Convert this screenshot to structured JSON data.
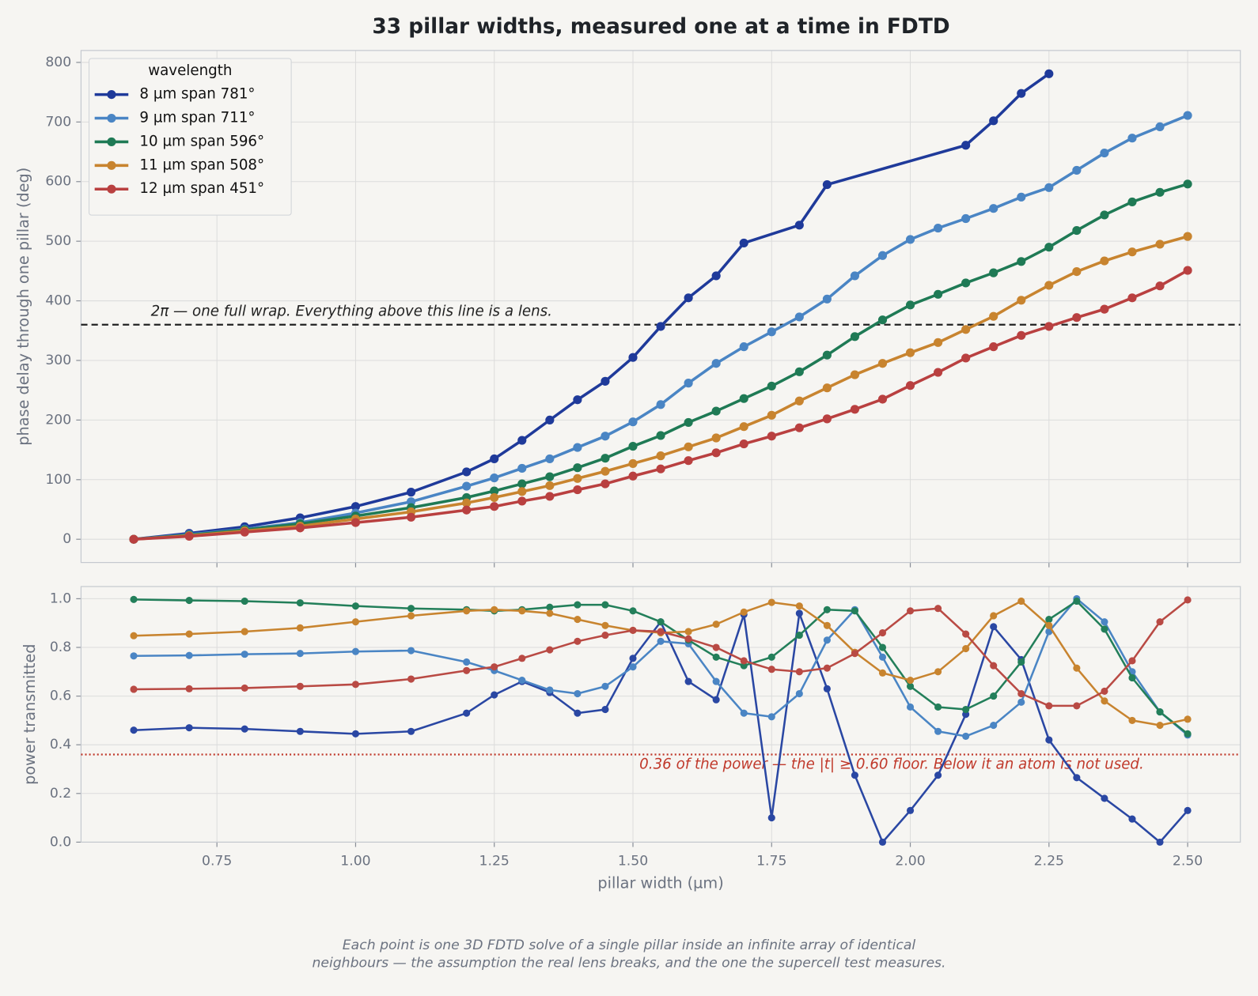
{
  "chart_data": [
    {
      "type": "line",
      "title": "33 pillar widths, measured one at a time in FDTD",
      "ylabel": "phase delay through one pillar (deg)",
      "x": [
        0.6,
        0.7,
        0.8,
        0.9,
        1.0,
        1.1,
        1.2,
        1.25,
        1.3,
        1.35,
        1.4,
        1.45,
        1.5,
        1.55,
        1.6,
        1.65,
        1.7,
        1.75,
        1.8,
        1.85,
        1.9,
        1.95,
        2.0,
        2.05,
        2.1,
        2.15,
        2.2,
        2.25,
        2.3,
        2.35,
        2.4,
        2.45,
        2.5
      ],
      "xlim": [
        0.505,
        2.595
      ],
      "ylim": [
        -39,
        820
      ],
      "xticks": [
        0.75,
        1,
        1.25,
        1.5,
        1.75,
        2,
        2.25,
        2.5
      ],
      "xtick_labels": false,
      "yticks": [
        0,
        100,
        200,
        300,
        400,
        500,
        600,
        700,
        800
      ],
      "grid": true,
      "legend": {
        "title": "wavelength",
        "loc": "upper left"
      },
      "hline": {
        "value": 360,
        "label": "2π — one full wrap. Everything above this line is a lens.",
        "color": "#222222",
        "style": "dashed"
      },
      "series": [
        {
          "name": "8 µm   span 781°",
          "color": "#1f3a9a",
          "x": [
            0.6,
            0.7,
            0.8,
            0.9,
            1.0,
            1.1,
            1.2,
            1.25,
            1.3,
            1.35,
            1.4,
            1.45,
            1.5,
            1.55,
            1.6,
            1.65,
            1.7,
            1.8,
            1.85,
            2.1,
            2.15,
            2.2,
            2.25
          ],
          "values": [
            0,
            10,
            21,
            36,
            55,
            79,
            113,
            135,
            166,
            200,
            234,
            265,
            305,
            357,
            405,
            442,
            497,
            527,
            595,
            661,
            702,
            748,
            781
          ]
        },
        {
          "name": "9 µm   span 711°",
          "color": "#4a85c4",
          "values": [
            0,
            8,
            17,
            28,
            44,
            63,
            89,
            103,
            119,
            135,
            154,
            173,
            197,
            226,
            262,
            295,
            323,
            348,
            373,
            403,
            442,
            476,
            503,
            522,
            538,
            555,
            574,
            590,
            619,
            648,
            673,
            692,
            711
          ]
        },
        {
          "name": "10 µm   span 596°",
          "color": "#1f7a55",
          "values": [
            0,
            7,
            16,
            26,
            39,
            53,
            70,
            81,
            93,
            105,
            120,
            136,
            156,
            174,
            196,
            215,
            236,
            257,
            281,
            309,
            340,
            368,
            393,
            411,
            430,
            447,
            466,
            490,
            518,
            544,
            566,
            582,
            596
          ]
        },
        {
          "name": "11 µm   span 508°",
          "color": "#c8842f",
          "values": [
            0,
            6,
            14,
            22,
            34,
            46,
            61,
            70,
            80,
            90,
            102,
            114,
            127,
            140,
            155,
            170,
            189,
            208,
            232,
            254,
            276,
            295,
            313,
            330,
            352,
            374,
            401,
            426,
            449,
            467,
            482,
            495,
            508
          ]
        },
        {
          "name": "12 µm   span 451°",
          "color": "#b94040",
          "values": [
            0,
            5,
            12,
            19,
            28,
            37,
            49,
            55,
            64,
            72,
            83,
            93,
            106,
            118,
            132,
            145,
            160,
            173,
            187,
            202,
            218,
            235,
            258,
            280,
            304,
            323,
            342,
            357,
            372,
            386,
            405,
            425,
            451
          ]
        }
      ]
    },
    {
      "type": "line",
      "xlabel": "pillar width (µm)",
      "ylabel": "power transmitted",
      "x": [
        0.6,
        0.7,
        0.8,
        0.9,
        1.0,
        1.1,
        1.2,
        1.25,
        1.3,
        1.35,
        1.4,
        1.45,
        1.5,
        1.55,
        1.6,
        1.65,
        1.7,
        1.75,
        1.8,
        1.85,
        1.9,
        1.95,
        2.0,
        2.05,
        2.1,
        2.15,
        2.2,
        2.25,
        2.3,
        2.35,
        2.4,
        2.45,
        2.5
      ],
      "xlim": [
        0.505,
        2.595
      ],
      "ylim": [
        0,
        1.05
      ],
      "xticks": [
        {
          "value": 0.75,
          "label": "0.75"
        },
        {
          "value": 1,
          "label": "1.00"
        },
        {
          "value": 1.25,
          "label": "1.25"
        },
        {
          "value": 1.5,
          "label": "1.50"
        },
        {
          "value": 1.75,
          "label": "1.75"
        },
        {
          "value": 2,
          "label": "2.00"
        },
        {
          "value": 2.25,
          "label": "2.25"
        },
        {
          "value": 2.5,
          "label": "2.50"
        }
      ],
      "yticks": [
        {
          "value": 0,
          "label": "0.0"
        },
        {
          "value": 0.2,
          "label": "0.2"
        },
        {
          "value": 0.4,
          "label": "0.4"
        },
        {
          "value": 0.6,
          "label": "0.6"
        },
        {
          "value": 0.8,
          "label": "0.8"
        },
        {
          "value": 1,
          "label": "1.0"
        }
      ],
      "grid": true,
      "hline": {
        "value": 0.36,
        "label": "0.36 of the power — the |t| ≥ 0.60 floor. Below it an atom is not used.",
        "color": "#c0392b",
        "style": "dotted"
      },
      "series": [
        {
          "color": "#2a47a3",
          "values": [
            0.46,
            0.47,
            0.465,
            0.455,
            0.445,
            0.455,
            0.53,
            0.605,
            0.66,
            0.615,
            0.53,
            0.545,
            0.755,
            0.905,
            0.66,
            0.585,
            0.935,
            0.1,
            0.94,
            0.63,
            0.275,
            0.0,
            0.13,
            0.275,
            0.525,
            0.885,
            0.75,
            0.42,
            0.265,
            0.18,
            0.095,
            0.0,
            0.13
          ]
        },
        {
          "color": "#4a85c4",
          "values": [
            0.765,
            0.767,
            0.772,
            0.775,
            0.783,
            0.787,
            0.74,
            0.705,
            0.665,
            0.625,
            0.61,
            0.64,
            0.72,
            0.825,
            0.815,
            0.66,
            0.53,
            0.515,
            0.61,
            0.83,
            0.955,
            0.76,
            0.555,
            0.455,
            0.435,
            0.48,
            0.575,
            0.865,
            1.0,
            0.905,
            0.7,
            0.535,
            0.44
          ]
        },
        {
          "color": "#237f5a",
          "values": [
            0.997,
            0.993,
            0.99,
            0.983,
            0.97,
            0.96,
            0.955,
            0.95,
            0.955,
            0.965,
            0.975,
            0.975,
            0.95,
            0.905,
            0.83,
            0.76,
            0.725,
            0.76,
            0.85,
            0.955,
            0.95,
            0.8,
            0.64,
            0.555,
            0.545,
            0.6,
            0.74,
            0.915,
            0.99,
            0.875,
            0.675,
            0.535,
            0.445
          ]
        },
        {
          "color": "#c8842f",
          "values": [
            0.848,
            0.855,
            0.865,
            0.88,
            0.905,
            0.93,
            0.95,
            0.955,
            0.95,
            0.94,
            0.915,
            0.89,
            0.87,
            0.86,
            0.865,
            0.895,
            0.945,
            0.985,
            0.97,
            0.89,
            0.78,
            0.695,
            0.665,
            0.7,
            0.795,
            0.93,
            0.99,
            0.89,
            0.715,
            0.58,
            0.5,
            0.48,
            0.505
          ]
        },
        {
          "color": "#b94a44",
          "values": [
            0.628,
            0.63,
            0.633,
            0.64,
            0.648,
            0.67,
            0.705,
            0.72,
            0.755,
            0.79,
            0.825,
            0.85,
            0.87,
            0.865,
            0.835,
            0.8,
            0.745,
            0.71,
            0.7,
            0.715,
            0.775,
            0.86,
            0.95,
            0.96,
            0.855,
            0.725,
            0.61,
            0.56,
            0.56,
            0.62,
            0.745,
            0.905,
            0.995
          ]
        }
      ]
    }
  ],
  "caption": [
    "Each point is one 3D FDTD solve of a single pillar inside an infinite array of identical",
    "neighbours — the assumption the real lens breaks, and the one the supercell test measures."
  ]
}
